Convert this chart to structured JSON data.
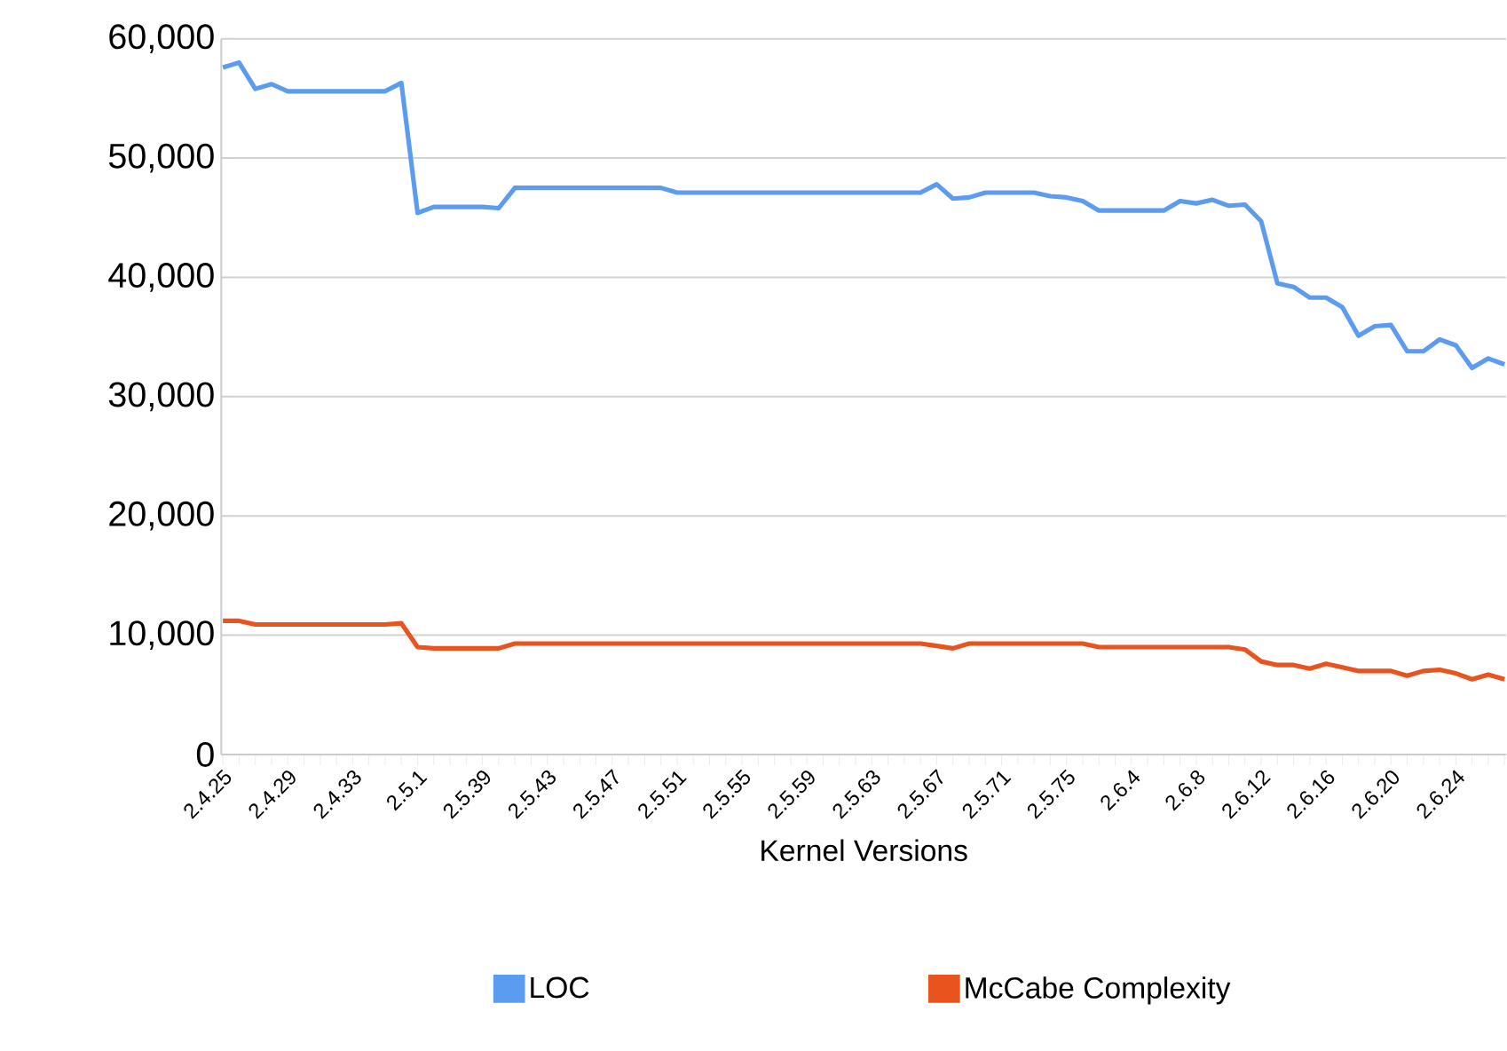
{
  "chart_data": {
    "type": "line",
    "xlabel": "Kernel Versions",
    "categories": [
      "2.4.25",
      null,
      null,
      null,
      "2.4.29",
      null,
      null,
      null,
      "2.4.33",
      null,
      null,
      null,
      "2.5.1",
      null,
      null,
      null,
      "2.5.39",
      null,
      null,
      null,
      "2.5.43",
      null,
      null,
      null,
      "2.5.47",
      null,
      null,
      null,
      "2.5.51",
      null,
      null,
      null,
      "2.5.55",
      null,
      null,
      null,
      "2.5.59",
      null,
      null,
      null,
      "2.5.63",
      null,
      null,
      null,
      "2.5.67",
      null,
      null,
      null,
      "2.5.71",
      null,
      null,
      null,
      "2.5.75",
      null,
      null,
      null,
      "2.6.4",
      null,
      null,
      null,
      "2.6.8",
      null,
      null,
      null,
      "2.6.12",
      null,
      null,
      null,
      "2.6.16",
      null,
      null,
      null,
      "2.6.20",
      null,
      null,
      null,
      "2.6.24",
      null,
      null,
      null
    ],
    "series": [
      {
        "name": "LOC",
        "color": "#5b9bf0",
        "values": [
          57600,
          58000,
          55800,
          56200,
          55600,
          55600,
          55600,
          55600,
          55600,
          55600,
          55600,
          56300,
          45400,
          45900,
          45900,
          45900,
          45900,
          45800,
          47500,
          47500,
          47500,
          47500,
          47500,
          47500,
          47500,
          47500,
          47500,
          47500,
          47100,
          47100,
          47100,
          47100,
          47100,
          47100,
          47100,
          47100,
          47100,
          47100,
          47100,
          47100,
          47100,
          47100,
          47100,
          47100,
          47800,
          46600,
          46700,
          47100,
          47100,
          47100,
          47100,
          46800,
          46700,
          46400,
          45600,
          45600,
          45600,
          45600,
          45600,
          46400,
          46200,
          46500,
          46000,
          46100,
          44700,
          39500,
          39200,
          38300,
          38300,
          37500,
          35100,
          35900,
          36000,
          33800,
          33800,
          34800,
          34300,
          32400,
          33200,
          32700
        ]
      },
      {
        "name": "McCabe Complexity",
        "color": "#e8531e",
        "values": [
          11200,
          11200,
          10900,
          10900,
          10900,
          10900,
          10900,
          10900,
          10900,
          10900,
          10900,
          11000,
          9000,
          8900,
          8900,
          8900,
          8900,
          8900,
          9300,
          9300,
          9300,
          9300,
          9300,
          9300,
          9300,
          9300,
          9300,
          9300,
          9300,
          9300,
          9300,
          9300,
          9300,
          9300,
          9300,
          9300,
          9300,
          9300,
          9300,
          9300,
          9300,
          9300,
          9300,
          9300,
          9100,
          8900,
          9300,
          9300,
          9300,
          9300,
          9300,
          9300,
          9300,
          9300,
          9000,
          9000,
          9000,
          9000,
          9000,
          9000,
          9000,
          9000,
          9000,
          8800,
          7800,
          7500,
          7500,
          7200,
          7600,
          7300,
          7000,
          7000,
          7000,
          6600,
          7000,
          7100,
          6800,
          6300,
          6700,
          6300
        ]
      }
    ],
    "ylim": [
      0,
      60000
    ],
    "yticks": [
      0,
      {
        "value": 10000,
        "label": "10,000"
      },
      {
        "value": 20000,
        "label": "20,000"
      },
      {
        "value": 30000,
        "label": "30,000"
      },
      {
        "value": 40000,
        "label": "40,000"
      },
      {
        "value": 50000,
        "label": "50,000"
      },
      {
        "value": 60000,
        "label": "60,000"
      }
    ],
    "grid": "y",
    "legend": "bottom",
    "marker": "none",
    "line_style": "solid"
  }
}
